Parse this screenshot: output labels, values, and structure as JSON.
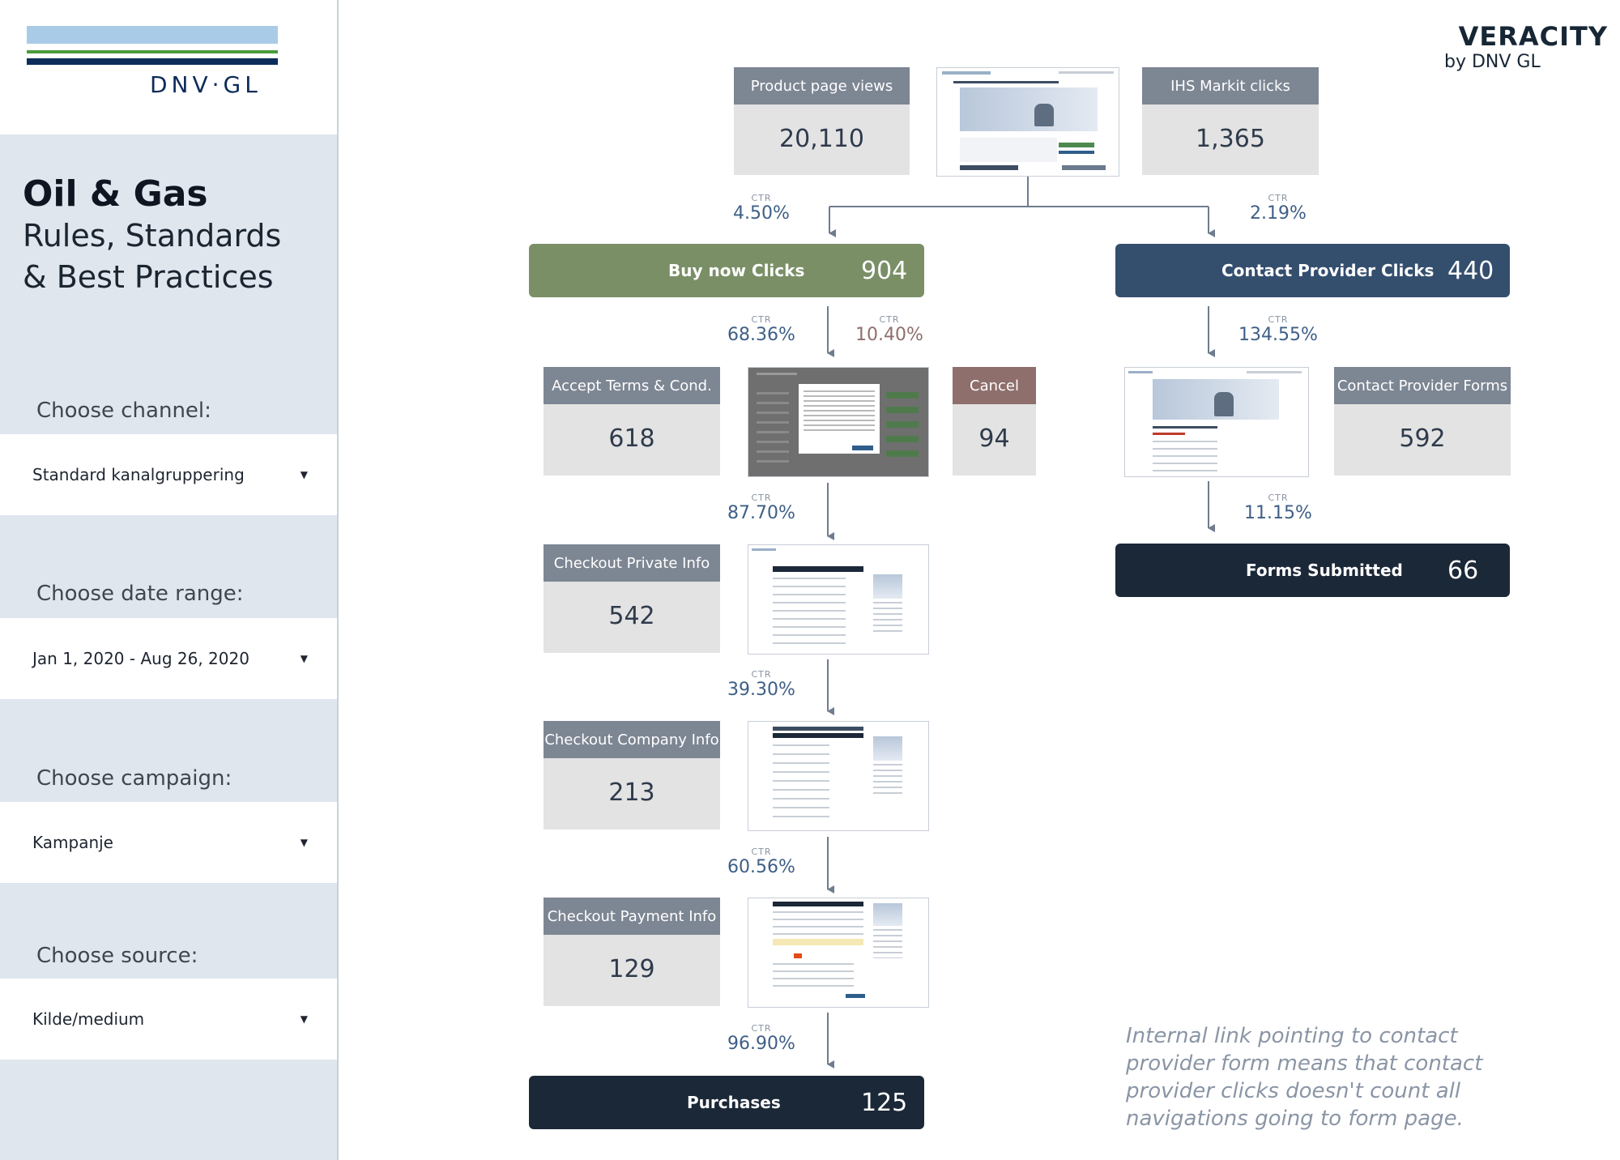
{
  "logo": {
    "text": "DNV·GL"
  },
  "brand": {
    "name": "VERACITY",
    "sub": "by DNV GL"
  },
  "sidebar": {
    "title": "Oil & Gas",
    "subtitle_line1": "Rules, Standards",
    "subtitle_line2": "& Best Practices",
    "controls": [
      {
        "label": "Choose channel:",
        "value": "Standard kanalgruppering"
      },
      {
        "label": "Choose date range:",
        "value": "Jan 1, 2020 - Aug 26, 2020"
      },
      {
        "label": "Choose campaign:",
        "value": "Kampanje"
      },
      {
        "label": "Choose source:",
        "value": "Kilde/medium"
      }
    ]
  },
  "ctr_key": "CTR",
  "funnel": {
    "product_page_views": {
      "label": "Product page views",
      "value": "20,110"
    },
    "ihs_markit_clicks": {
      "label": "IHS Markit clicks",
      "value": "1,365"
    },
    "ctr_buy_now": "4.50%",
    "ctr_contact": "2.19%",
    "buy_now": {
      "label": "Buy now Clicks",
      "value": "904"
    },
    "contact_provider": {
      "label": "Contact Provider Clicks",
      "value": "440"
    },
    "ctr_accept": "68.36%",
    "ctr_cancel": "10.40%",
    "ctr_contact_forms": "134.55%",
    "accept_terms": {
      "label": "Accept Terms & Cond.",
      "value": "618"
    },
    "cancel": {
      "label": "Cancel",
      "value": "94"
    },
    "contact_provider_forms": {
      "label": "Contact Provider Forms",
      "value": "592"
    },
    "ctr_private": "87.70%",
    "ctr_forms_submitted": "11.15%",
    "checkout_private": {
      "label": "Checkout Private Info",
      "value": "542"
    },
    "forms_submitted": {
      "label": "Forms Submitted",
      "value": "66"
    },
    "ctr_company": "39.30%",
    "checkout_company": {
      "label": "Checkout Company Info",
      "value": "213"
    },
    "ctr_payment": "60.56%",
    "checkout_payment": {
      "label": "Checkout Payment Info",
      "value": "129"
    },
    "ctr_purchases": "96.90%",
    "purchases": {
      "label": "Purchases",
      "value": "125"
    }
  },
  "note": "Internal link pointing to contact provider form means that contact provider clicks doesn't count all navigations going to form page.",
  "colors": {
    "buy_now_green": "#7a8f66",
    "contact_blue": "#344e6e",
    "dark_navy": "#1b2838",
    "cancel_brown": "#8f6f6c",
    "card_head_grey": "#7d8693"
  }
}
